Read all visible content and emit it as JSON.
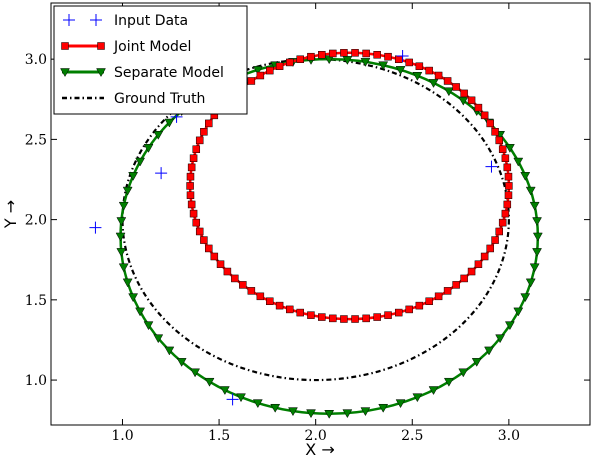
{
  "chart_data": {
    "type": "line",
    "title": "",
    "xlabel": "X →",
    "ylabel": "Y →",
    "xlim": [
      0.63,
      3.42
    ],
    "ylim": [
      0.72,
      3.35
    ],
    "xticks": [
      {
        "value": 1.0,
        "label": "1.0"
      },
      {
        "value": 1.5,
        "label": "1.5"
      },
      {
        "value": 2.0,
        "label": "2.0"
      },
      {
        "value": 2.5,
        "label": "2.5"
      },
      {
        "value": 3.0,
        "label": "3.0"
      }
    ],
    "yticks": [
      {
        "value": 1.0,
        "label": "1.0"
      },
      {
        "value": 1.5,
        "label": "1.5"
      },
      {
        "value": 2.0,
        "label": "2.0"
      },
      {
        "value": 2.5,
        "label": "2.5"
      },
      {
        "value": 3.0,
        "label": "3.0"
      }
    ],
    "grid": false,
    "legend_position": "top-left",
    "series": [
      {
        "name": "Input Data",
        "kind": "points",
        "color": "#0000ff",
        "marker": "plus",
        "x": [
          0.86,
          1.2,
          1.28,
          1.57,
          2.45,
          2.91
        ],
        "y": [
          1.95,
          2.29,
          2.64,
          0.88,
          3.02,
          2.33
        ]
      },
      {
        "name": "Joint Model",
        "kind": "ellipse",
        "color": "#ff0000",
        "marker": "square",
        "cx": 2.175,
        "cy": 2.21,
        "rx": 0.825,
        "ry": 0.83,
        "n_markers": 90
      },
      {
        "name": "Separate Model",
        "kind": "ellipse",
        "color": "#007f00",
        "marker": "triangle-down",
        "cx": 2.07,
        "cy": 1.895,
        "rx": 1.08,
        "ry": 1.105,
        "n_markers": 72
      },
      {
        "name": "Ground Truth",
        "kind": "ellipse",
        "color": "#000000",
        "marker": "none",
        "cx": 2.0,
        "cy": 2.0,
        "rx": 1.0,
        "ry": 1.0
      }
    ]
  }
}
